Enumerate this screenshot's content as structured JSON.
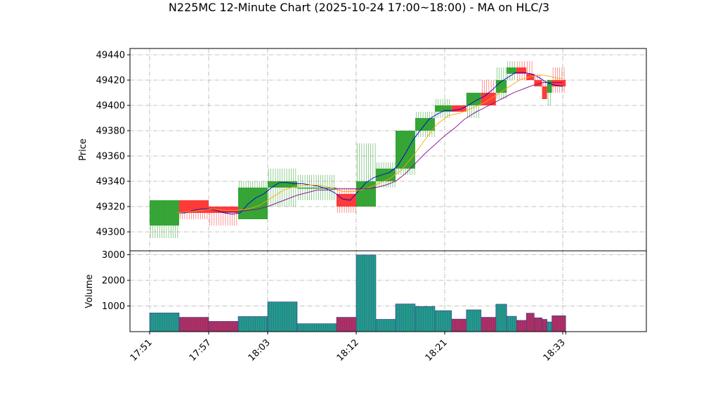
{
  "chart_data": {
    "type": "candlestick",
    "title": "N225MC 12-Minute Chart (2025-10-24 17:00~18:00) - MA on HLC/3",
    "price_panel": {
      "ylabel": "Price",
      "ylim": [
        49285,
        49445
      ],
      "yticks": [
        49300,
        49320,
        49340,
        49360,
        49380,
        49400,
        49420,
        49440
      ],
      "grid": true
    },
    "volume_panel": {
      "ylabel": "Volume",
      "ylim": [
        0,
        3150
      ],
      "yticks": [
        1000,
        2000,
        3000
      ],
      "grid": true
    },
    "xticks": [
      {
        "t": 0,
        "label": "17:51"
      },
      {
        "t": 6,
        "label": "17:57"
      },
      {
        "t": 12,
        "label": "18:03"
      },
      {
        "t": 21,
        "label": "18:12"
      },
      {
        "t": 30,
        "label": "18:21"
      },
      {
        "t": 42,
        "label": "18:33"
      }
    ],
    "x_range_minutes": [
      -2,
      50.5
    ],
    "bars": [
      {
        "t0": 0,
        "t1": 3,
        "open": 49305,
        "high": 49325,
        "low": 49295,
        "close": 49325,
        "volume": 730
      },
      {
        "t0": 3,
        "t1": 6,
        "open": 49325,
        "high": 49325,
        "low": 49310,
        "close": 49315,
        "volume": 560
      },
      {
        "t0": 6,
        "t1": 9,
        "open": 49320,
        "high": 49320,
        "low": 49305,
        "close": 49315,
        "volume": 400
      },
      {
        "t0": 9,
        "t1": 12,
        "open": 49310,
        "high": 49340,
        "low": 49310,
        "close": 49335,
        "volume": 590
      },
      {
        "t0": 12,
        "t1": 15,
        "open": 49335,
        "high": 49350,
        "low": 49320,
        "close": 49340,
        "volume": 1160
      },
      {
        "t0": 15,
        "t1": 19,
        "open": 49335,
        "high": 49345,
        "low": 49325,
        "close": 49335,
        "volume": 310
      },
      {
        "t0": 19,
        "t1": 21,
        "open": 49330,
        "high": 49335,
        "low": 49315,
        "close": 49320,
        "volume": 560
      },
      {
        "t0": 21,
        "t1": 23,
        "open": 49320,
        "high": 49370,
        "low": 49320,
        "close": 49340,
        "volume": 2990
      },
      {
        "t0": 23,
        "t1": 25,
        "open": 49340,
        "high": 49355,
        "low": 49335,
        "close": 49350,
        "volume": 480
      },
      {
        "t0": 25,
        "t1": 27,
        "open": 49350,
        "high": 49380,
        "low": 49345,
        "close": 49380,
        "volume": 1080
      },
      {
        "t0": 27,
        "t1": 29,
        "open": 49380,
        "high": 49395,
        "low": 49375,
        "close": 49390,
        "volume": 980
      },
      {
        "t0": 29,
        "t1": 30.7,
        "open": 49395,
        "high": 49405,
        "low": 49390,
        "close": 49400,
        "volume": 820
      },
      {
        "t0": 30.7,
        "t1": 32.2,
        "open": 49400,
        "high": 49400,
        "low": 49395,
        "close": 49395,
        "volume": 490
      },
      {
        "t0": 32.2,
        "t1": 33.7,
        "open": 49400,
        "high": 49410,
        "low": 49390,
        "close": 49410,
        "volume": 850
      },
      {
        "t0": 33.7,
        "t1": 35.2,
        "open": 49410,
        "high": 49420,
        "low": 49400,
        "close": 49400,
        "volume": 560
      },
      {
        "t0": 35.2,
        "t1": 36.3,
        "open": 49410,
        "high": 49430,
        "low": 49405,
        "close": 49420,
        "volume": 1070
      },
      {
        "t0": 36.3,
        "t1": 37.3,
        "open": 49425,
        "high": 49435,
        "low": 49420,
        "close": 49430,
        "volume": 600
      },
      {
        "t0": 37.3,
        "t1": 38.3,
        "open": 49430,
        "high": 49435,
        "low": 49420,
        "close": 49425,
        "volume": 440
      },
      {
        "t0": 38.3,
        "t1": 39.1,
        "open": 49425,
        "high": 49435,
        "low": 49420,
        "close": 49420,
        "volume": 720
      },
      {
        "t0": 39.1,
        "t1": 39.9,
        "open": 49420,
        "high": 49425,
        "low": 49415,
        "close": 49415,
        "volume": 540
      },
      {
        "t0": 39.9,
        "t1": 40.4,
        "open": 49415,
        "high": 49420,
        "low": 49405,
        "close": 49405,
        "volume": 480
      },
      {
        "t0": 40.4,
        "t1": 40.9,
        "open": 49410,
        "high": 49420,
        "low": 49400,
        "close": 49420,
        "volume": 380
      },
      {
        "t0": 40.9,
        "t1": 42.3,
        "open": 49420,
        "high": 49430,
        "low": 49410,
        "close": 49415,
        "volume": 620
      }
    ],
    "ma_series": [
      {
        "color": "#0000cc",
        "points": [
          [
            2.8,
            49315
          ],
          [
            3.6,
            49315
          ],
          [
            4.4,
            49317
          ],
          [
            5.2,
            49318
          ],
          [
            6.0,
            49318
          ],
          [
            6.8,
            49317
          ],
          [
            7.6,
            49315
          ],
          [
            8.4,
            49314
          ],
          [
            9.2,
            49315
          ],
          [
            10.0,
            49322
          ],
          [
            10.8,
            49327
          ],
          [
            11.6,
            49330
          ],
          [
            12.4,
            49335
          ],
          [
            13.2,
            49339
          ],
          [
            14.0,
            49339
          ],
          [
            14.8,
            49338
          ],
          [
            15.6,
            49338
          ],
          [
            16.4,
            49337
          ],
          [
            17.2,
            49336
          ],
          [
            18.0,
            49334
          ],
          [
            18.8,
            49331
          ],
          [
            19.6,
            49326
          ],
          [
            20.4,
            49325
          ],
          [
            21.2,
            49332
          ],
          [
            22.0,
            49339
          ],
          [
            22.8,
            49343
          ],
          [
            23.6,
            49345
          ],
          [
            24.4,
            49347
          ],
          [
            25.2,
            49352
          ],
          [
            26.0,
            49362
          ],
          [
            26.8,
            49373
          ],
          [
            27.6,
            49381
          ],
          [
            28.4,
            49389
          ],
          [
            29.2,
            49393
          ],
          [
            30.0,
            49396
          ],
          [
            30.8,
            49396
          ],
          [
            31.6,
            49397
          ],
          [
            32.4,
            49400
          ],
          [
            33.2,
            49404
          ],
          [
            34.0,
            49407
          ],
          [
            34.8,
            49412
          ],
          [
            35.6,
            49418
          ],
          [
            36.4,
            49422
          ],
          [
            37.2,
            49426
          ],
          [
            38.0,
            49426
          ],
          [
            38.8,
            49425
          ],
          [
            39.6,
            49422
          ],
          [
            40.4,
            49418
          ],
          [
            41.2,
            49416
          ],
          [
            42.0,
            49415
          ]
        ]
      },
      {
        "color": "#ffa500",
        "points": [
          [
            2.8,
            49315
          ],
          [
            4.0,
            49316
          ],
          [
            5.2,
            49317
          ],
          [
            6.4,
            49318
          ],
          [
            7.6,
            49317
          ],
          [
            8.8,
            49317
          ],
          [
            10.0,
            49318
          ],
          [
            11.2,
            49321
          ],
          [
            12.4,
            49327
          ],
          [
            13.6,
            49333
          ],
          [
            14.8,
            49336
          ],
          [
            16.0,
            49337
          ],
          [
            17.2,
            49337
          ],
          [
            18.4,
            49335
          ],
          [
            19.6,
            49332
          ],
          [
            20.8,
            49332
          ],
          [
            22.0,
            49334
          ],
          [
            23.2,
            49338
          ],
          [
            24.4,
            49342
          ],
          [
            25.6,
            49349
          ],
          [
            26.8,
            49360
          ],
          [
            28.0,
            49373
          ],
          [
            29.2,
            49385
          ],
          [
            30.4,
            49392
          ],
          [
            31.6,
            49394
          ],
          [
            32.8,
            49398
          ],
          [
            34.0,
            49402
          ],
          [
            35.2,
            49408
          ],
          [
            36.4,
            49414
          ],
          [
            37.6,
            49420
          ],
          [
            38.8,
            49423
          ],
          [
            40.0,
            49424
          ],
          [
            41.2,
            49422
          ],
          [
            42.0,
            49421
          ]
        ]
      },
      {
        "color": "#880088",
        "points": [
          [
            7.0,
            49316
          ],
          [
            8.0,
            49316
          ],
          [
            9.0,
            49316
          ],
          [
            10.0,
            49317
          ],
          [
            11.0,
            49318
          ],
          [
            12.0,
            49320
          ],
          [
            13.0,
            49323
          ],
          [
            14.0,
            49326
          ],
          [
            15.0,
            49329
          ],
          [
            16.0,
            49331
          ],
          [
            17.0,
            49333
          ],
          [
            18.0,
            49333
          ],
          [
            19.0,
            49334
          ],
          [
            20.0,
            49334
          ],
          [
            21.0,
            49334
          ],
          [
            22.0,
            49334
          ],
          [
            23.0,
            49335
          ],
          [
            24.0,
            49337
          ],
          [
            25.0,
            49340
          ],
          [
            26.0,
            49346
          ],
          [
            27.0,
            49354
          ],
          [
            28.0,
            49362
          ],
          [
            29.0,
            49369
          ],
          [
            30.0,
            49376
          ],
          [
            31.0,
            49382
          ],
          [
            32.0,
            49389
          ],
          [
            33.0,
            49394
          ],
          [
            34.0,
            49398
          ],
          [
            35.0,
            49402
          ],
          [
            36.0,
            49406
          ],
          [
            37.0,
            49410
          ],
          [
            38.0,
            49413
          ],
          [
            39.0,
            49416
          ],
          [
            40.0,
            49418
          ],
          [
            41.0,
            49418
          ],
          [
            42.0,
            49418
          ]
        ]
      }
    ],
    "colors": {
      "up": "#2ca02c",
      "down": "#ff3030",
      "volume_up": "#1f9e89",
      "volume_down": "#b03060"
    }
  }
}
